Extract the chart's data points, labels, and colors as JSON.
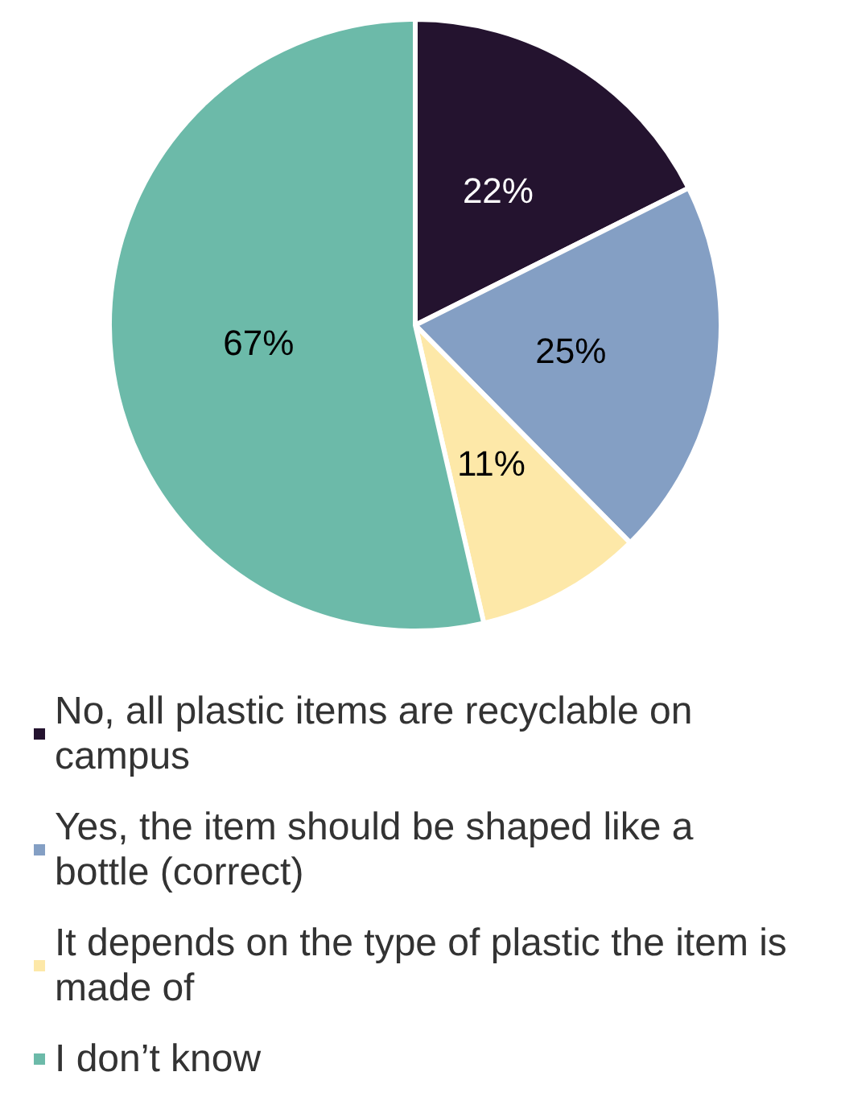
{
  "chart_data": {
    "type": "pie",
    "categories": [
      "No, all plastic items are recyclable on campus",
      "Yes, the item should be shaped like a bottle (correct)",
      "It depends on the type of plastic the item is made of",
      "I don’t know"
    ],
    "values": [
      22,
      25,
      11,
      67
    ],
    "colors": [
      "#24132f",
      "#849fc4",
      "#fde8a8",
      "#6cbaa9"
    ],
    "value_labels": [
      "22%",
      "25%",
      "11%",
      "67%"
    ],
    "legend": "bottom"
  }
}
